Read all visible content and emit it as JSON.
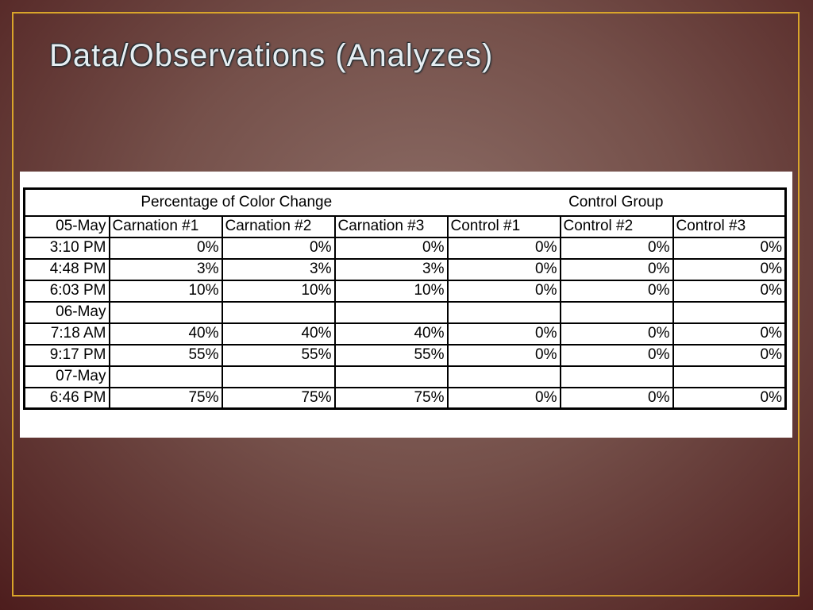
{
  "header": {
    "title": "Data/Observations (Analyzes)"
  },
  "table": {
    "groups": [
      "Percentage of Color Change",
      "Control Group"
    ],
    "columns": [
      "05-May",
      "Carnation #1",
      "Carnation #2",
      "Carnation #3",
      "Control #1",
      "Control #2",
      "Control #3"
    ],
    "rows": [
      {
        "label": "3:10 PM",
        "cells": [
          "0%",
          "0%",
          "0%",
          "0%",
          "0%",
          "0%"
        ]
      },
      {
        "label": "4:48 PM",
        "cells": [
          "3%",
          "3%",
          "3%",
          "0%",
          "0%",
          "0%"
        ]
      },
      {
        "label": "6:03 PM",
        "cells": [
          "10%",
          "10%",
          "10%",
          "0%",
          "0%",
          "0%"
        ]
      },
      {
        "label": "06-May"
      },
      {
        "label": "7:18 AM",
        "cells": [
          "40%",
          "40%",
          "40%",
          "0%",
          "0%",
          "0%"
        ]
      },
      {
        "label": "9:17 PM",
        "cells": [
          "55%",
          "55%",
          "55%",
          "0%",
          "0%",
          "0%"
        ]
      },
      {
        "label": "07-May"
      },
      {
        "label": "6:46 PM",
        "cells": [
          "75%",
          "75%",
          "75%",
          "0%",
          "0%",
          "0%"
        ]
      }
    ]
  }
}
